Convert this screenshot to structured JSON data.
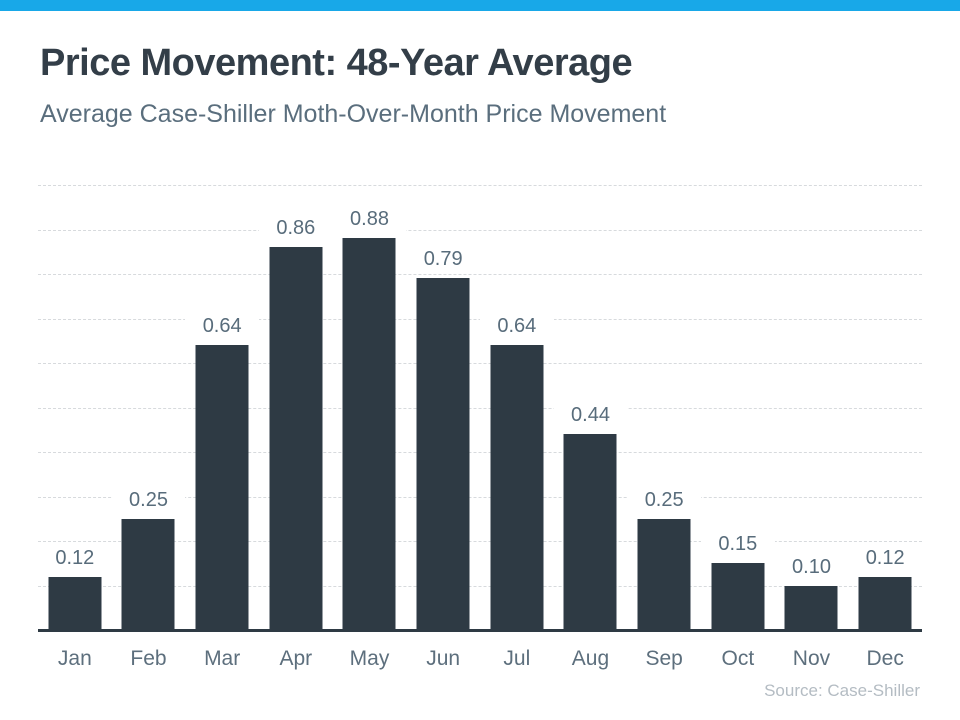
{
  "page": {
    "title": "Price Movement: 48-Year Average",
    "subtitle": "Average Case-Shiller Moth-Over-Month Price Movement",
    "source": "Source: Case-Shiller"
  },
  "colors": {
    "top_bar": "#18a8e8",
    "bar": "#2e3a44",
    "title": "#333e48",
    "subtitle": "#5a6e7d",
    "data_label": "#586c7b",
    "month_label": "#5d6f7d",
    "gridline": "#d7dadd",
    "axis": "#2e3a44",
    "source": "#b4bcc3"
  },
  "chart_data": {
    "type": "bar",
    "title": "Price Movement: 48-Year Average",
    "subtitle": "Average Case-Shiller Moth-Over-Month Price Movement",
    "categories": [
      "Jan",
      "Feb",
      "Mar",
      "Apr",
      "May",
      "Jun",
      "Jul",
      "Aug",
      "Sep",
      "Oct",
      "Nov",
      "Dec"
    ],
    "values": [
      0.12,
      0.25,
      0.64,
      0.86,
      0.88,
      0.79,
      0.64,
      0.44,
      0.25,
      0.15,
      0.1,
      0.12
    ],
    "data_labels": [
      "0.12",
      "0.25",
      "0.64",
      "0.86",
      "0.88",
      "0.79",
      "0.64",
      "0.44",
      "0.25",
      "0.15",
      "0.10",
      "0.12"
    ],
    "xlabel": "",
    "ylabel": "",
    "ylim": [
      0,
      1.0
    ],
    "grid_step": 0.1,
    "grid": true,
    "legend": false,
    "source": "Source: Case-Shiller"
  }
}
